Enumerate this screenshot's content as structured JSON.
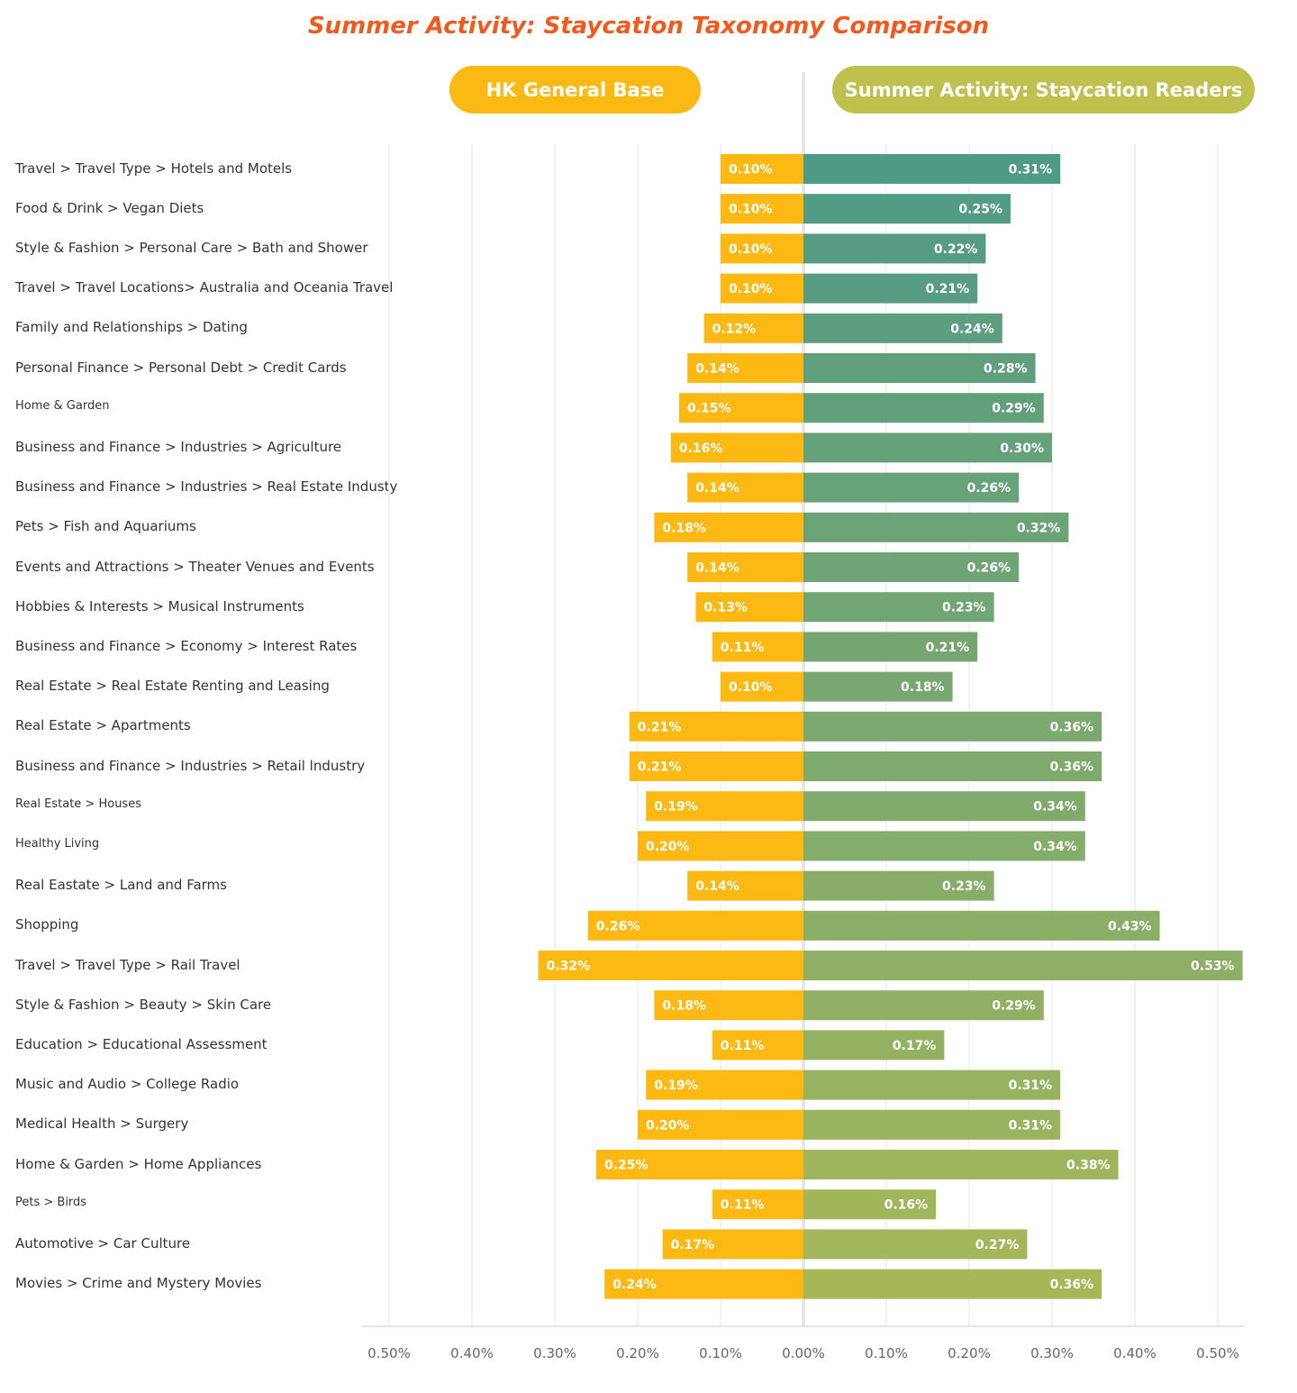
{
  "chart_data": {
    "type": "bar",
    "title": "Summer Activity: Staycation Taxonomy Comparison",
    "orientation": "horizontal-diverging",
    "series": [
      {
        "name": "HK General Base",
        "color": "#fdb913",
        "values": [
          0.1,
          0.1,
          0.1,
          0.1,
          0.12,
          0.14,
          0.15,
          0.16,
          0.14,
          0.18,
          0.14,
          0.13,
          0.11,
          0.1,
          0.21,
          0.21,
          0.19,
          0.2,
          0.14,
          0.26,
          0.32,
          0.18,
          0.11,
          0.19,
          0.2,
          0.25,
          0.11,
          0.17,
          0.24
        ]
      },
      {
        "name": "Summer Activity: Staycation Readers",
        "values": [
          0.31,
          0.25,
          0.22,
          0.21,
          0.24,
          0.28,
          0.29,
          0.3,
          0.26,
          0.32,
          0.26,
          0.23,
          0.21,
          0.18,
          0.36,
          0.36,
          0.34,
          0.34,
          0.23,
          0.43,
          0.53,
          0.29,
          0.17,
          0.31,
          0.31,
          0.38,
          0.16,
          0.27,
          0.36
        ]
      }
    ],
    "value_labels_left": [
      "0.10%",
      "0.10%",
      "0.10%",
      "0.10%",
      "0.12%",
      "0.14%",
      "0.15%",
      "0.16%",
      "0.14%",
      "0.18%",
      "0.14%",
      "0.13%",
      "0.11%",
      "0.10%",
      "0.21%",
      "0.21%",
      "0.19%",
      "0.20%",
      "0.14%",
      "0.26%",
      "0.32%",
      "0.18%",
      "0.11%",
      "0.19%",
      "0.20%",
      "0.25%",
      "0.11%",
      "0.17%",
      "0.24%"
    ],
    "value_labels_right": [
      "0.31%",
      "0.25%",
      "0.22%",
      "0.21%",
      "0.24%",
      "0.28%",
      "0.29%",
      "0.30%",
      "0.26%",
      "0.32%",
      "0.26%",
      "0.23%",
      "0.21%",
      "0.18%",
      "0.36%",
      "0.36%",
      "0.34%",
      "0.34%",
      "0.23%",
      "0.43%",
      "0.53%",
      "0.29%",
      "0.17%",
      "0.31%",
      "0.31%",
      "0.38%",
      "0.16%",
      "0.27%",
      "0.36%"
    ],
    "categories": [
      "Travel > Travel Type > Hotels and Motels",
      "Food & Drink > Vegan Diets",
      "Style & Fashion > Personal Care > Bath and Shower",
      "Travel > Travel Locations> Australia and Oceania Travel",
      "Family and Relationships > Dating",
      "Personal Finance > Personal Debt > Credit Cards",
      "Home & Garden",
      "Business and Finance > Industries > Agriculture",
      "Business and Finance > Industries > Real Estate Industy",
      "Pets > Fish and Aquariums",
      "Events and Attractions > Theater Venues and Events",
      "Hobbies & Interests > Musical Instruments",
      "Business and Finance > Economy > Interest Rates",
      "Real Estate > Real Estate Renting and Leasing",
      "Real Estate > Apartments",
      "Business and Finance > Industries > Retail lndustry",
      "Real Estate > Houses",
      "Healthy Living",
      "Real Eastate > Land and Farms",
      "Shopping",
      "Travel > Travel Type > Rail Travel",
      "Style & Fashion > Beauty > Skin Care",
      "Education > Educational Assessment",
      "Music and Audio > College Radio",
      "Medical Health > Surgery",
      "Home & Garden > Home Appliances",
      "Pets > Birds",
      "Automotive > Car Culture",
      "Movies > Crime and Mystery Movies"
    ],
    "small_label_indices": [
      6,
      16,
      17,
      26
    ],
    "x_tick_labels": [
      "0.50%",
      "0.40%",
      "0.30%",
      "0.20%",
      "0.10%",
      "0.00%",
      "0.10%",
      "0.20%",
      "0.30%",
      "0.40%",
      "0.50%"
    ],
    "xlim": [
      -0.5,
      0.5
    ],
    "right_color_gradient": [
      "#4f9a86",
      "#a7b758"
    ],
    "grid": true,
    "legend": "top"
  }
}
